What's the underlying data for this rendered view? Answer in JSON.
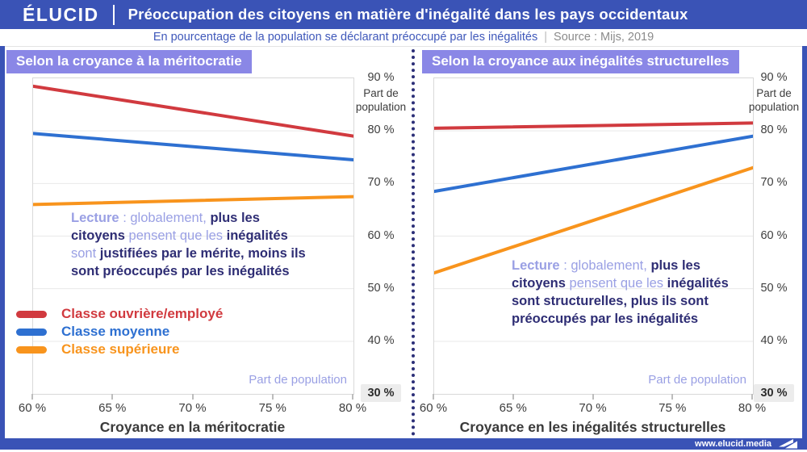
{
  "header": {
    "logo": "ÉLUCID",
    "title": "Préoccupation des citoyens en matière d'inégalité dans les pays occidentaux"
  },
  "subtitle": {
    "text": "En pourcentage de la population se déclarant préoccupé par les inégalités",
    "separator": "|",
    "source": "Source : Mijs, 2019"
  },
  "footer": {
    "url": "www.elucid.media"
  },
  "colors": {
    "brand_blue": "#3a53b6",
    "badge_purple": "#8a87e6",
    "muted_purple": "#9aa0e4",
    "navy_text": "#2e2d74",
    "red": "#d13a3f",
    "blue": "#2e70d1",
    "orange": "#f8941d",
    "highlight_bg": "#ececec"
  },
  "legend": {
    "position": "bottom-left of first panel",
    "items": [
      {
        "label": "Classe ouvrière/employé",
        "color": "#d13a3f"
      },
      {
        "label": "Classe moyenne",
        "color": "#2e70d1"
      },
      {
        "label": "Classe supérieure",
        "color": "#f8941d"
      }
    ]
  },
  "chart_data": [
    {
      "type": "line",
      "title": "Selon la croyance à la méritocratie",
      "xlabel": "Croyance en la méritocratie",
      "ylabel": "Part de population",
      "xlim": [
        60,
        80
      ],
      "ylim": [
        30,
        90
      ],
      "grid": "horizontal",
      "x_ticks": [
        60,
        65,
        70,
        75,
        80
      ],
      "x_tick_labels": [
        "60 %",
        "65 %",
        "70 %",
        "75 %",
        "80 %"
      ],
      "y_ticks": [
        90,
        80,
        70,
        60,
        50,
        40,
        30
      ],
      "y_tick_labels": [
        "90 %",
        "80 %",
        "70 %",
        "60 %",
        "50 %",
        "40 %",
        "30 %"
      ],
      "series": [
        {
          "name": "Classe ouvrière/employé",
          "color": "#d13a3f",
          "x": [
            60,
            80
          ],
          "values": [
            88.5,
            79
          ]
        },
        {
          "name": "Classe moyenne",
          "color": "#2e70d1",
          "x": [
            60,
            80
          ],
          "values": [
            79.5,
            74.5
          ]
        },
        {
          "name": "Classe supérieure",
          "color": "#f8941d",
          "x": [
            60,
            80
          ],
          "values": [
            66,
            67.5
          ]
        }
      ],
      "annotation": [
        {
          "text": "Lecture",
          "style": "muted-bold"
        },
        {
          "text": " : globalement, ",
          "style": "muted"
        },
        {
          "text": "plus les citoyens",
          "style": "strong"
        },
        {
          "text": " pensent que les ",
          "style": "muted"
        },
        {
          "text": "inégalités",
          "style": "strong"
        },
        {
          "text": " sont ",
          "style": "muted"
        },
        {
          "text": "justifiées par le mérite, moins ils sont préoccupés par les inégalités",
          "style": "strong"
        }
      ]
    },
    {
      "type": "line",
      "title": "Selon la croyance aux inégalités structurelles",
      "xlabel": "Croyance en les inégalités structurelles",
      "ylabel": "Part de population",
      "xlim": [
        60,
        80
      ],
      "ylim": [
        30,
        90
      ],
      "grid": "horizontal",
      "x_ticks": [
        60,
        65,
        70,
        75,
        80
      ],
      "x_tick_labels": [
        "60 %",
        "65 %",
        "70 %",
        "75 %",
        "80 %"
      ],
      "y_ticks": [
        90,
        80,
        70,
        60,
        50,
        40,
        30
      ],
      "y_tick_labels": [
        "90 %",
        "80 %",
        "70 %",
        "60 %",
        "50 %",
        "40 %",
        "30 %"
      ],
      "series": [
        {
          "name": "Classe ouvrière/employé",
          "color": "#d13a3f",
          "x": [
            60,
            80
          ],
          "values": [
            80.5,
            81.5
          ]
        },
        {
          "name": "Classe moyenne",
          "color": "#2e70d1",
          "x": [
            60,
            80
          ],
          "values": [
            68.5,
            79
          ]
        },
        {
          "name": "Classe supérieure",
          "color": "#f8941d",
          "x": [
            60,
            80
          ],
          "values": [
            53,
            73
          ]
        }
      ],
      "annotation": [
        {
          "text": "Lecture",
          "style": "muted-bold"
        },
        {
          "text": " : globalement, ",
          "style": "muted"
        },
        {
          "text": "plus les citoyens",
          "style": "strong"
        },
        {
          "text": " pensent que les ",
          "style": "muted"
        },
        {
          "text": "inégalités sont structurelles, plus ils sont préoccupés par les inégalités",
          "style": "strong"
        }
      ]
    }
  ]
}
